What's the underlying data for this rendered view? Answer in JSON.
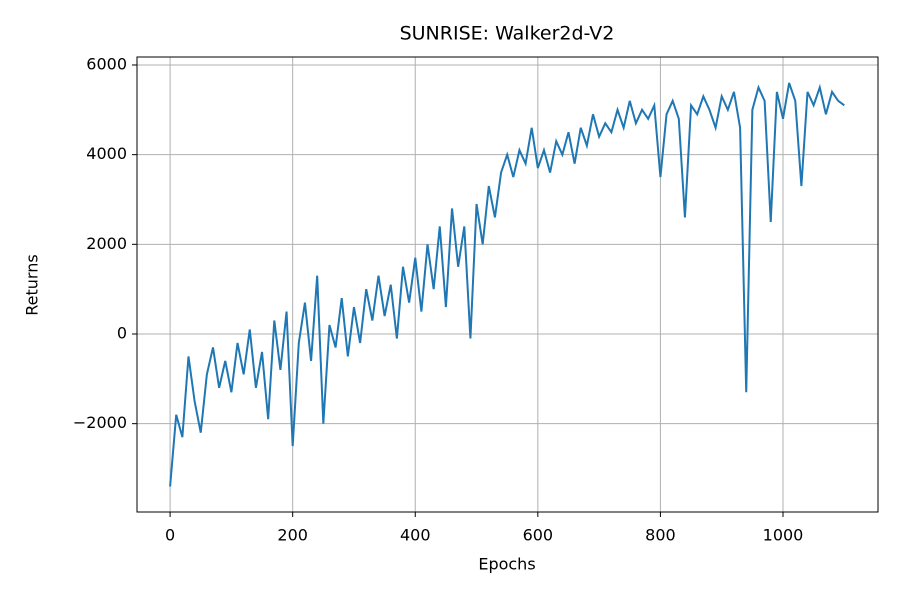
{
  "chart_data": {
    "type": "line",
    "title": "SUNRISE: Walker2d-V2",
    "xlabel": "Epochs",
    "ylabel": "Returns",
    "x": [
      0,
      10,
      20,
      30,
      40,
      50,
      60,
      70,
      80,
      90,
      100,
      110,
      120,
      130,
      140,
      150,
      160,
      170,
      180,
      190,
      200,
      210,
      220,
      230,
      240,
      250,
      260,
      270,
      280,
      290,
      300,
      310,
      320,
      330,
      340,
      350,
      360,
      370,
      380,
      390,
      400,
      410,
      420,
      430,
      440,
      450,
      460,
      470,
      480,
      490,
      500,
      510,
      520,
      530,
      540,
      550,
      560,
      570,
      580,
      590,
      600,
      610,
      620,
      630,
      640,
      650,
      660,
      670,
      680,
      690,
      700,
      710,
      720,
      730,
      740,
      750,
      760,
      770,
      780,
      790,
      800,
      810,
      820,
      830,
      840,
      850,
      860,
      870,
      880,
      890,
      900,
      910,
      920,
      930,
      940,
      950,
      960,
      970,
      980,
      990,
      1000,
      1010,
      1020,
      1030,
      1040,
      1050,
      1060,
      1070,
      1080,
      1090,
      1100
    ],
    "series": [
      {
        "name": "Returns",
        "color": "#1f77b4",
        "values": [
          -3400,
          -1800,
          -2300,
          -500,
          -1500,
          -2200,
          -900,
          -300,
          -1200,
          -600,
          -1300,
          -200,
          -900,
          100,
          -1200,
          -400,
          -1900,
          300,
          -800,
          500,
          -2500,
          -200,
          700,
          -600,
          1300,
          -2000,
          200,
          -300,
          800,
          -500,
          600,
          -200,
          1000,
          300,
          1300,
          400,
          1100,
          -100,
          1500,
          700,
          1700,
          500,
          2000,
          1000,
          2400,
          600,
          2800,
          1500,
          2400,
          -100,
          2900,
          2000,
          3300,
          2600,
          3600,
          4000,
          3500,
          4100,
          3800,
          4600,
          3700,
          4100,
          3600,
          4300,
          4000,
          4500,
          3800,
          4600,
          4200,
          4900,
          4400,
          4700,
          4500,
          5000,
          4600,
          5200,
          4700,
          5000,
          4800,
          5100,
          3500,
          4900,
          5200,
          4800,
          2600,
          5100,
          4900,
          5300,
          5000,
          4600,
          5300,
          5000,
          5400,
          4600,
          -1300,
          5000,
          5500,
          5200,
          2500,
          5400,
          4800,
          5600,
          5200,
          3300,
          5400,
          5100,
          5500,
          4900,
          5400,
          5200,
          5100
        ]
      }
    ],
    "xlim": [
      -54,
      1155
    ],
    "ylim": [
      -3970,
      6178
    ],
    "xticks": [
      0,
      200,
      400,
      600,
      800,
      1000
    ],
    "yticks": [
      {
        "value": -2000,
        "label": "−2000"
      },
      0,
      2000,
      4000,
      6000
    ],
    "grid": true
  }
}
